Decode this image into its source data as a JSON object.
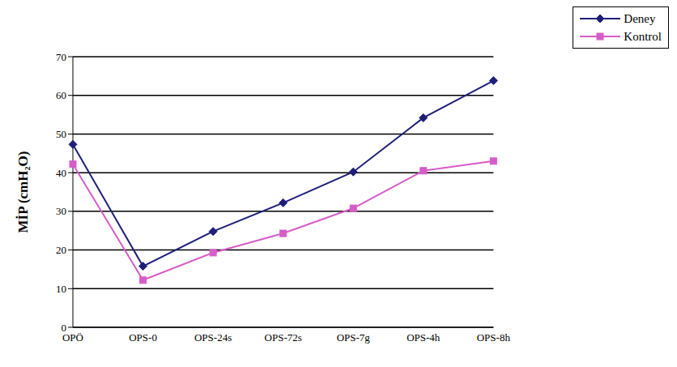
{
  "chart_data": {
    "type": "line",
    "categories": [
      "OPÖ",
      "OPS-0",
      "OPS-24s",
      "OPS-72s",
      "OPS-7g",
      "OPS-4h",
      "OPS-8h"
    ],
    "series": [
      {
        "name": "Deney",
        "color": "#1f1f7a",
        "marker": "diamond",
        "values": [
          47.3,
          15.8,
          24.8,
          32.2,
          40.2,
          54.2,
          63.8
        ]
      },
      {
        "name": "Kontrol",
        "color": "#d65cc8",
        "marker": "square",
        "values": [
          42.2,
          12.2,
          19.3,
          24.3,
          30.8,
          40.5,
          43.0
        ]
      }
    ],
    "y_label": "MİP (cmH₂O)",
    "ylim": [
      0,
      70
    ],
    "yticks": [
      0,
      10,
      20,
      30,
      40,
      50,
      60,
      70
    ],
    "grid": true,
    "legend": "top-right"
  }
}
